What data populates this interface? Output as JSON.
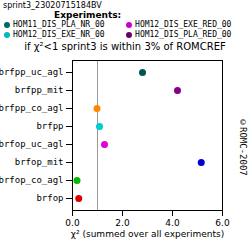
{
  "chart_data": {
    "type": "scatter",
    "title": "if χ²<1 sprint3 is within 3% of ROMCREF",
    "subtitle": "sprint3_23020715184BV",
    "annotations": [
      "©ROMC-2007"
    ],
    "xlabel": "χ² (summed over all experiments)",
    "categories": [
      "brfop",
      "brfop_co_agl",
      "brfop_mit",
      "brfop_uc_agl",
      "brfpp",
      "brfpp_co_agl",
      "brfpp_mit",
      "brfpp_uc_agl"
    ],
    "values": [
      0.25,
      0.18,
      5.15,
      1.28,
      1.08,
      0.98,
      4.2,
      2.8
    ],
    "colors": [
      "#dd0000",
      "#00bb00",
      "#0000cc",
      "#dd00dd",
      "#00cccc",
      "#ff8800",
      "#880088",
      "#005555"
    ],
    "xlim": [
      0,
      6
    ],
    "xticks": [
      0,
      2,
      4,
      6
    ],
    "reference_line": {
      "x": 1.0,
      "color": "#999999"
    },
    "legend": "top",
    "legend_title": "Experiments:",
    "legend_entries": [
      {
        "name": "HOM11_DIS_PLA_NR_00",
        "color": "#006666"
      },
      {
        "name": "HOM12_DIS_EXE_NR_00",
        "color": "#00bbbb"
      },
      {
        "name": "HOM12_DIS_EXE_RED_00",
        "color": "#cc00cc"
      },
      {
        "name": "HOM12_DIS_PLA_RED_00",
        "color": "#660066"
      }
    ],
    "grid": false
  }
}
